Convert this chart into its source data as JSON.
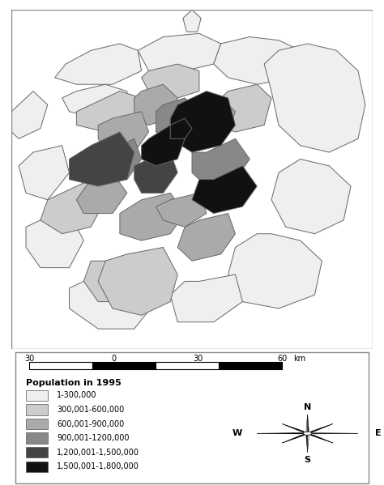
{
  "legend_title": "Population in 1995",
  "legend_labels": [
    "1-300,000",
    "300,001-600,000",
    "600,001-900,000",
    "900,001-1200,000",
    "1,200,001-1,500,000",
    "1,500,001-1,800,000"
  ],
  "legend_colors": [
    "#efefef",
    "#cccccc",
    "#aaaaaa",
    "#888888",
    "#444444",
    "#111111"
  ],
  "scalebar_labels": [
    "30",
    "0",
    "30",
    "60"
  ],
  "scalebar_label": "km",
  "background_color": "#ffffff"
}
